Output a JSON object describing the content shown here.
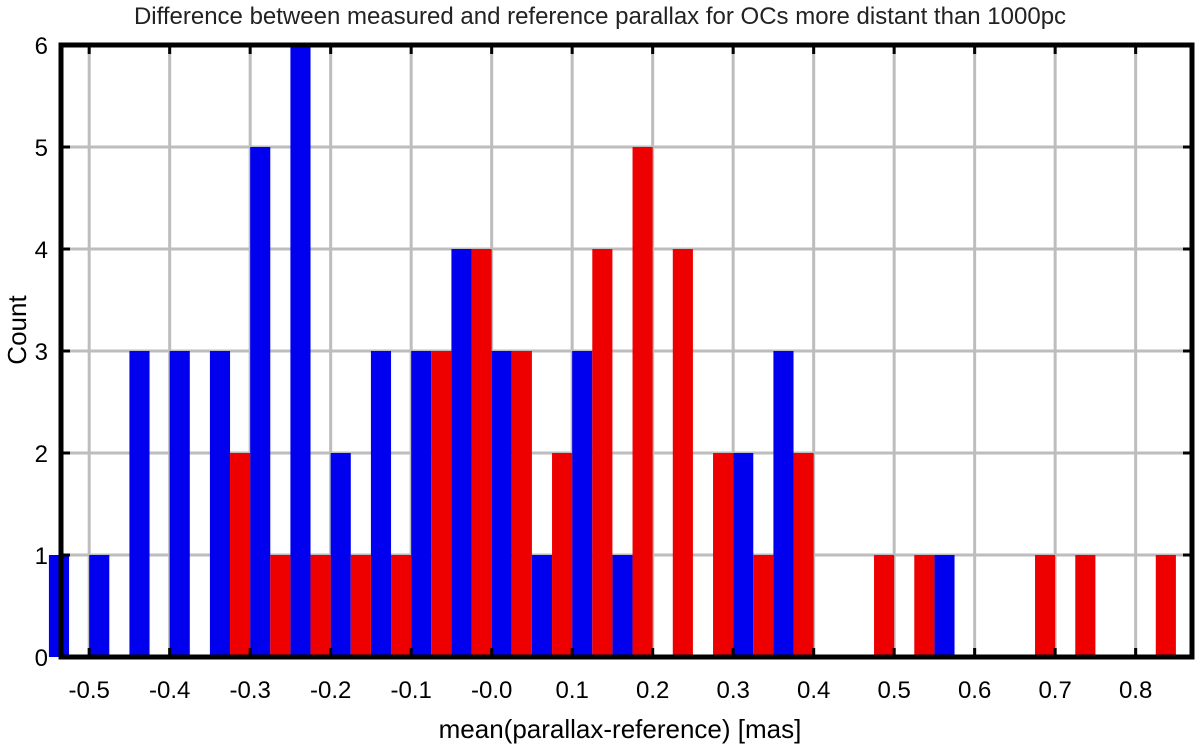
{
  "chart_data": {
    "type": "bar",
    "title": "Difference between measured and reference parallax for OCs more distant than 1000pc",
    "xlabel": "mean(parallax-reference) [mas]",
    "ylabel": "Count",
    "xlim": [
      -0.535,
      0.87
    ],
    "ylim": [
      0,
      6
    ],
    "bin_width": 0.05,
    "grid": true,
    "x_ticks": [
      "-0.5",
      "-0.4",
      "-0.3",
      "-0.2",
      "-0.1",
      "-0.0",
      "0.1",
      "0.2",
      "0.3",
      "0.4",
      "0.5",
      "0.6",
      "0.7",
      "0.8"
    ],
    "x_tick_values": [
      -0.5,
      -0.4,
      -0.3,
      -0.2,
      -0.1,
      0.0,
      0.1,
      0.2,
      0.3,
      0.4,
      0.5,
      0.6,
      0.7,
      0.8
    ],
    "y_ticks": [
      "0",
      "1",
      "2",
      "3",
      "4",
      "5",
      "6"
    ],
    "y_tick_values": [
      0,
      1,
      2,
      3,
      4,
      5,
      6
    ],
    "x": [
      -0.525,
      -0.475,
      -0.425,
      -0.375,
      -0.325,
      -0.275,
      -0.225,
      -0.175,
      -0.125,
      -0.075,
      -0.025,
      0.025,
      0.075,
      0.125,
      0.175,
      0.225,
      0.275,
      0.325,
      0.375,
      0.425,
      0.475,
      0.525,
      0.575,
      0.625,
      0.675,
      0.725,
      0.775,
      0.825
    ],
    "series": [
      {
        "color": "#0000ee",
        "values": [
          1,
          1,
          3,
          3,
          3,
          5,
          6,
          2,
          3,
          3,
          4,
          3,
          1,
          3,
          1,
          0,
          0,
          2,
          3,
          0,
          0,
          0,
          1,
          0,
          0,
          0,
          0,
          0
        ]
      },
      {
        "color": "#ee0000",
        "values": [
          0,
          0,
          0,
          0,
          2,
          1,
          1,
          1,
          1,
          3,
          4,
          3,
          2,
          4,
          5,
          4,
          2,
          1,
          2,
          0,
          1,
          1,
          0,
          0,
          1,
          1,
          0,
          1
        ]
      }
    ]
  }
}
